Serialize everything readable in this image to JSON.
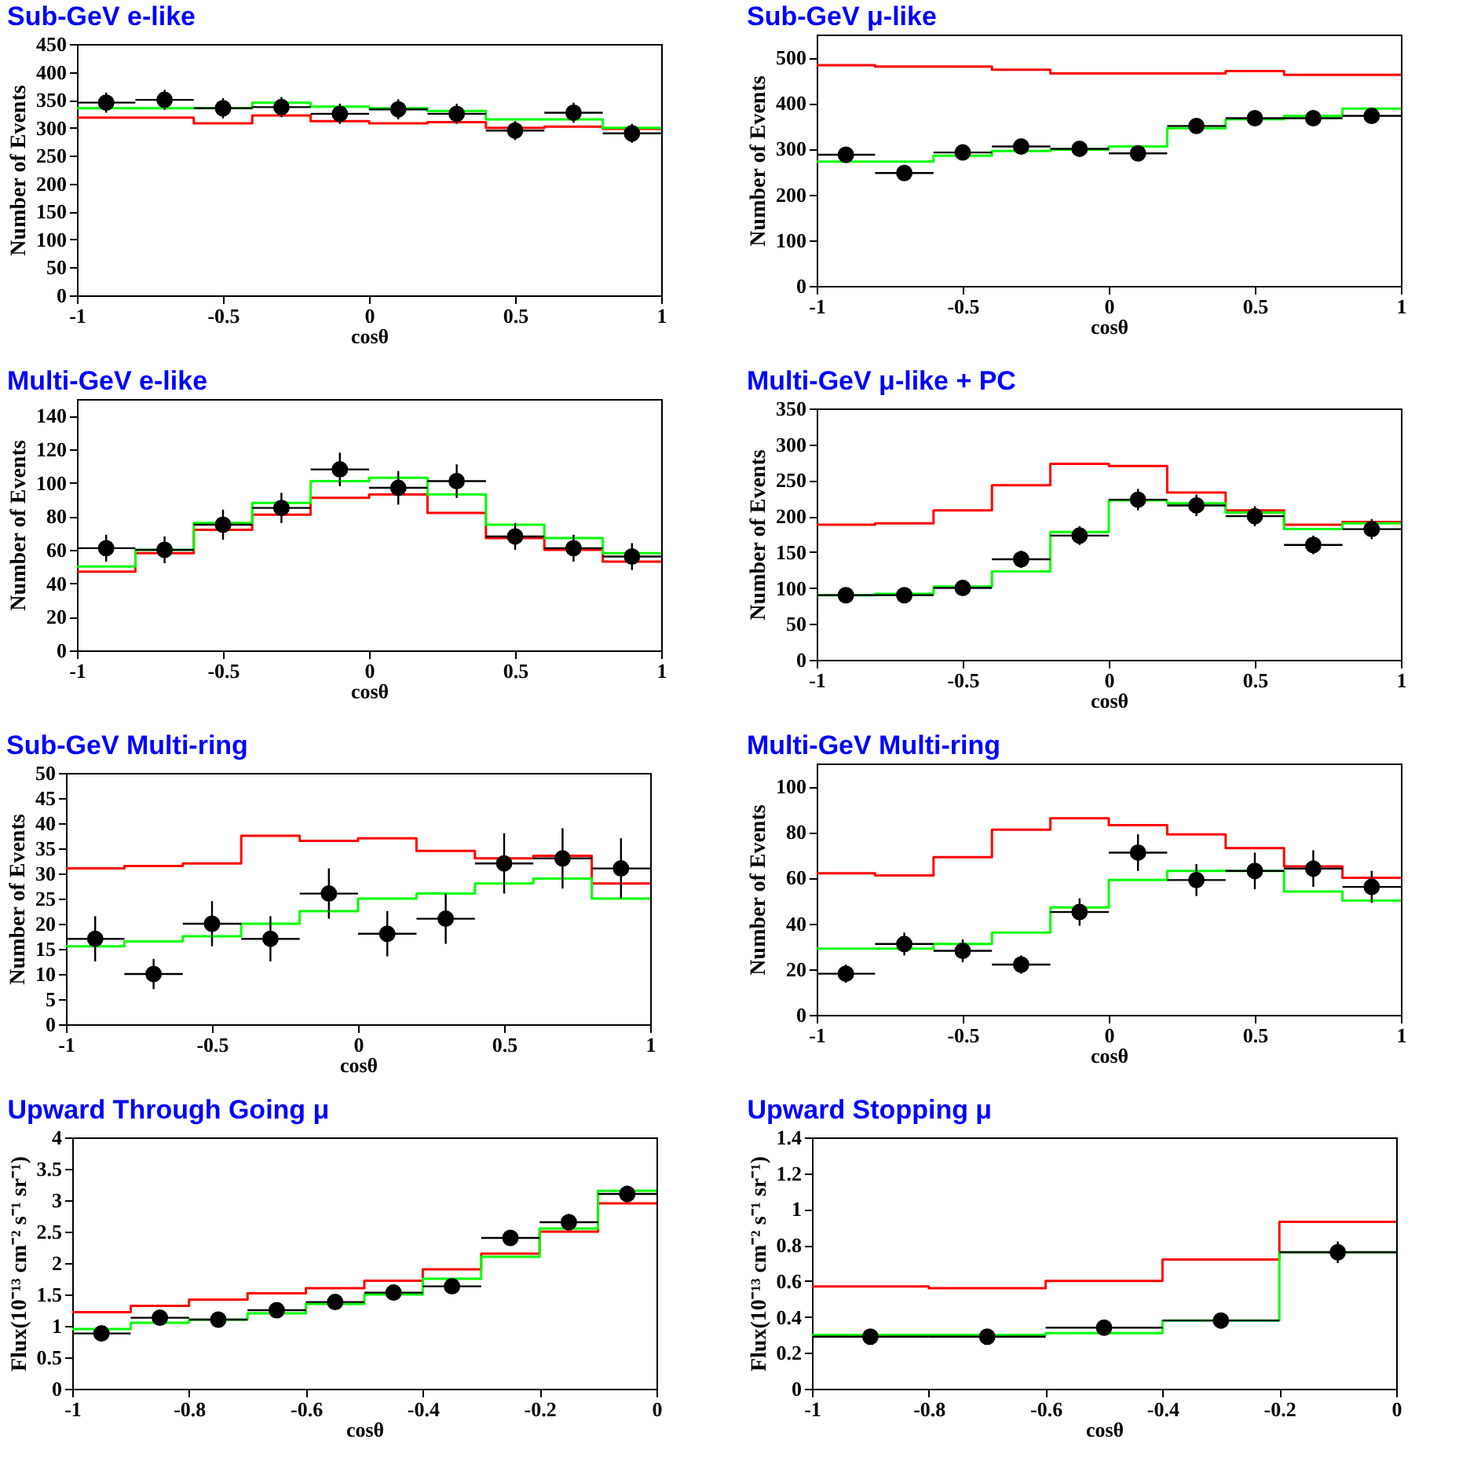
{
  "chart_data": [
    {
      "type": "scatter",
      "title": "Sub-GeV e-like",
      "xlabel": "cosθ",
      "ylabel": "Number of Events",
      "xlim": [
        -1,
        1
      ],
      "xticks": [
        -1,
        -0.5,
        0,
        0.5,
        1
      ],
      "ylim": [
        0,
        450
      ],
      "yticks": [
        0,
        50,
        100,
        150,
        200,
        250,
        300,
        350,
        400,
        450
      ],
      "series": [
        {
          "type": "step",
          "color": "#ff0000",
          "x": [
            -1,
            -0.8,
            -0.6,
            -0.4,
            -0.2,
            0,
            0.2,
            0.4,
            0.6,
            0.8,
            1
          ],
          "values": [
            318,
            318,
            308,
            322,
            312,
            308,
            310,
            300,
            302,
            298,
            298
          ]
        },
        {
          "type": "step",
          "color": "#00ff00",
          "x": [
            -1,
            -0.8,
            -0.6,
            -0.4,
            -0.2,
            0,
            0.2,
            0.4,
            0.6,
            0.8,
            1
          ],
          "values": [
            335,
            335,
            335,
            345,
            338,
            335,
            330,
            315,
            315,
            300,
            300
          ]
        },
        {
          "marker": "circle",
          "color": "#000000",
          "x": [
            -0.9,
            -0.7,
            -0.5,
            -0.3,
            -0.1,
            0.1,
            0.3,
            0.5,
            0.7,
            0.9
          ],
          "values": [
            345,
            350,
            335,
            337,
            325,
            333,
            325,
            295,
            327,
            290
          ],
          "errors": [
            18,
            18,
            18,
            18,
            18,
            18,
            18,
            17,
            18,
            17
          ],
          "xerrors": [
            0.1,
            0.1,
            0.1,
            0.1,
            0.1,
            0.1,
            0.1,
            0.1,
            0.1,
            0.1
          ]
        }
      ]
    },
    {
      "type": "scatter",
      "title": "Sub-GeV μ-like",
      "xlabel": "cosθ",
      "ylabel": "Number of Events",
      "xlim": [
        -1,
        1
      ],
      "xticks": [
        -1,
        -0.5,
        0,
        0.5,
        1
      ],
      "ylim": [
        0,
        550
      ],
      "yticks": [
        0,
        100,
        200,
        300,
        400,
        500
      ],
      "series": [
        {
          "type": "step",
          "color": "#ff0000",
          "x": [
            -1,
            -0.8,
            -0.6,
            -0.4,
            -0.2,
            0,
            0.2,
            0.4,
            0.6,
            0.8,
            1
          ],
          "values": [
            483,
            480,
            480,
            473,
            465,
            465,
            465,
            470,
            462,
            462,
            462
          ]
        },
        {
          "type": "step",
          "color": "#00ff00",
          "x": [
            -1,
            -0.8,
            -0.6,
            -0.4,
            -0.2,
            0,
            0.2,
            0.4,
            0.6,
            0.8,
            1
          ],
          "values": [
            272,
            272,
            285,
            295,
            298,
            305,
            345,
            365,
            372,
            388,
            388
          ]
        },
        {
          "marker": "circle",
          "color": "#000000",
          "x": [
            -0.9,
            -0.7,
            -0.5,
            -0.3,
            -0.1,
            0.1,
            0.3,
            0.5,
            0.7,
            0.9
          ],
          "values": [
            287,
            247,
            292,
            305,
            300,
            290,
            350,
            367,
            367,
            372
          ],
          "errors": [
            15,
            15,
            15,
            15,
            15,
            15,
            17,
            17,
            17,
            17
          ],
          "xerrors": [
            0.1,
            0.1,
            0.1,
            0.1,
            0.1,
            0.1,
            0.1,
            0.1,
            0.1,
            0.1
          ]
        }
      ]
    },
    {
      "type": "scatter",
      "title": "Multi-GeV e-like",
      "xlabel": "cosθ",
      "ylabel": "Number of Events",
      "xlim": [
        -1,
        1
      ],
      "xticks": [
        -1,
        -0.5,
        0,
        0.5,
        1
      ],
      "ylim": [
        0,
        150
      ],
      "yticks": [
        0,
        20,
        40,
        60,
        80,
        100,
        120,
        140
      ],
      "series": [
        {
          "type": "step",
          "color": "#ff0000",
          "x": [
            -1,
            -0.8,
            -0.6,
            -0.4,
            -0.2,
            0,
            0.2,
            0.4,
            0.6,
            0.8,
            1
          ],
          "values": [
            47,
            58,
            72,
            81,
            91,
            93,
            82,
            67,
            60,
            53,
            53
          ]
        },
        {
          "type": "step",
          "color": "#00ff00",
          "x": [
            -1,
            -0.8,
            -0.6,
            -0.4,
            -0.2,
            0,
            0.2,
            0.4,
            0.6,
            0.8,
            1
          ],
          "values": [
            50,
            60,
            76,
            88,
            101,
            103,
            93,
            75,
            67,
            58,
            58
          ]
        },
        {
          "marker": "circle",
          "color": "#000000",
          "x": [
            -0.9,
            -0.7,
            -0.5,
            -0.3,
            -0.1,
            0.1,
            0.3,
            0.5,
            0.7,
            0.9
          ],
          "values": [
            61,
            60,
            75,
            85,
            108,
            97,
            101,
            68,
            61,
            56
          ],
          "errors": [
            8,
            8,
            9,
            9,
            10,
            10,
            10,
            8,
            8,
            8
          ],
          "xerrors": [
            0.1,
            0.1,
            0.1,
            0.1,
            0.1,
            0.1,
            0.1,
            0.1,
            0.1,
            0.1
          ]
        }
      ]
    },
    {
      "type": "scatter",
      "title": "Multi-GeV μ-like + PC",
      "xlabel": "cosθ",
      "ylabel": "Number of Events",
      "xlim": [
        -1,
        1
      ],
      "xticks": [
        -1,
        -0.5,
        0,
        0.5,
        1
      ],
      "ylim": [
        0,
        350
      ],
      "yticks": [
        0,
        50,
        100,
        150,
        200,
        250,
        300,
        350
      ],
      "series": [
        {
          "type": "step",
          "color": "#ff0000",
          "x": [
            -1,
            -0.8,
            -0.6,
            -0.4,
            -0.2,
            0,
            0.2,
            0.4,
            0.6,
            0.8,
            1
          ],
          "values": [
            188,
            190,
            208,
            243,
            273,
            270,
            233,
            208,
            188,
            192,
            192
          ]
        },
        {
          "type": "step",
          "color": "#00ff00",
          "x": [
            -1,
            -0.8,
            -0.6,
            -0.4,
            -0.2,
            0,
            0.2,
            0.4,
            0.6,
            0.8,
            1
          ],
          "values": [
            90,
            92,
            102,
            123,
            178,
            222,
            218,
            205,
            182,
            190,
            190
          ]
        },
        {
          "marker": "circle",
          "color": "#000000",
          "x": [
            -0.9,
            -0.7,
            -0.5,
            -0.3,
            -0.1,
            0.1,
            0.3,
            0.5,
            0.7,
            0.9
          ],
          "values": [
            90,
            90,
            100,
            140,
            173,
            223,
            215,
            200,
            160,
            182
          ],
          "errors": [
            9,
            9,
            10,
            12,
            13,
            15,
            15,
            14,
            13,
            14
          ],
          "xerrors": [
            0.1,
            0.1,
            0.1,
            0.1,
            0.1,
            0.1,
            0.1,
            0.1,
            0.1,
            0.1
          ]
        }
      ]
    },
    {
      "type": "scatter",
      "title": "Sub-GeV Multi-ring",
      "xlabel": "cosθ",
      "ylabel": "Number of Events",
      "xlim": [
        -1,
        1
      ],
      "xticks": [
        -1,
        -0.5,
        0,
        0.5,
        1
      ],
      "ylim": [
        0,
        50
      ],
      "yticks": [
        0,
        5,
        10,
        15,
        20,
        25,
        30,
        35,
        40,
        45,
        50
      ],
      "series": [
        {
          "type": "step",
          "color": "#ff0000",
          "x": [
            -1,
            -0.8,
            -0.6,
            -0.4,
            -0.2,
            0,
            0.2,
            0.4,
            0.6,
            0.8,
            1
          ],
          "values": [
            31,
            31.5,
            32,
            37.5,
            36.5,
            37,
            34.5,
            33,
            33.5,
            28,
            28
          ]
        },
        {
          "type": "step",
          "color": "#00ff00",
          "x": [
            -1,
            -0.8,
            -0.6,
            -0.4,
            -0.2,
            0,
            0.2,
            0.4,
            0.6,
            0.8,
            1
          ],
          "values": [
            15.5,
            16.5,
            17.5,
            20,
            22.5,
            25,
            26,
            28,
            29,
            25,
            25
          ]
        },
        {
          "marker": "circle",
          "color": "#000000",
          "x": [
            -0.9,
            -0.7,
            -0.5,
            -0.3,
            -0.1,
            0.1,
            0.3,
            0.5,
            0.7,
            0.9
          ],
          "values": [
            17,
            10,
            20,
            17,
            26,
            18,
            21,
            32,
            33,
            31
          ],
          "errors": [
            4.5,
            3,
            4.5,
            4.5,
            5,
            4.5,
            5,
            6,
            6,
            6
          ],
          "xerrors": [
            0.1,
            0.1,
            0.1,
            0.1,
            0.1,
            0.1,
            0.1,
            0.1,
            0.1,
            0.1
          ]
        }
      ]
    },
    {
      "type": "scatter",
      "title": "Multi-GeV Multi-ring",
      "xlabel": "cosθ",
      "ylabel": "Number of Events",
      "xlim": [
        -1,
        1
      ],
      "xticks": [
        -1,
        -0.5,
        0,
        0.5,
        1
      ],
      "ylim": [
        0,
        110
      ],
      "yticks": [
        0,
        20,
        40,
        60,
        80,
        100
      ],
      "series": [
        {
          "type": "step",
          "color": "#ff0000",
          "x": [
            -1,
            -0.8,
            -0.6,
            -0.4,
            -0.2,
            0,
            0.2,
            0.4,
            0.6,
            0.8,
            1
          ],
          "values": [
            62,
            61,
            69,
            81,
            86,
            83,
            79,
            73,
            65,
            60,
            60
          ]
        },
        {
          "type": "step",
          "color": "#00ff00",
          "x": [
            -1,
            -0.8,
            -0.6,
            -0.4,
            -0.2,
            0,
            0.2,
            0.4,
            0.6,
            0.8,
            1
          ],
          "values": [
            29,
            29,
            31,
            36,
            47,
            59,
            63,
            63,
            54,
            50,
            50
          ]
        },
        {
          "marker": "circle",
          "color": "#000000",
          "x": [
            -0.9,
            -0.7,
            -0.5,
            -0.3,
            -0.1,
            0.1,
            0.3,
            0.5,
            0.7,
            0.9
          ],
          "values": [
            18,
            31,
            28,
            22,
            45,
            71,
            59,
            63,
            64,
            56
          ],
          "errors": [
            4,
            5,
            5,
            4,
            6,
            8,
            7,
            8,
            8,
            7
          ],
          "xerrors": [
            0.1,
            0.1,
            0.1,
            0.1,
            0.1,
            0.1,
            0.1,
            0.1,
            0.1,
            0.1
          ]
        }
      ]
    },
    {
      "type": "scatter",
      "title": "Upward Through Going μ",
      "xlabel": "cosθ",
      "ylabel": "Flux(10⁻¹³ cm⁻² s⁻¹ sr⁻¹)",
      "xlim": [
        -1,
        0
      ],
      "xticks": [
        -1,
        -0.8,
        -0.6,
        -0.4,
        -0.2,
        0
      ],
      "ylim": [
        0,
        4
      ],
      "yticks": [
        0,
        0.5,
        1,
        1.5,
        2,
        2.5,
        3,
        3.5,
        4
      ],
      "series": [
        {
          "type": "step",
          "color": "#ff0000",
          "x": [
            -1,
            -0.9,
            -0.8,
            -0.7,
            -0.6,
            -0.5,
            -0.4,
            -0.3,
            -0.2,
            -0.1,
            0
          ],
          "values": [
            1.22,
            1.32,
            1.42,
            1.52,
            1.6,
            1.72,
            1.9,
            2.15,
            2.5,
            2.95,
            2.95
          ]
        },
        {
          "type": "step",
          "color": "#00ff00",
          "x": [
            -1,
            -0.9,
            -0.8,
            -0.7,
            -0.6,
            -0.5,
            -0.4,
            -0.3,
            -0.2,
            -0.1,
            0
          ],
          "values": [
            0.95,
            1.05,
            1.1,
            1.2,
            1.35,
            1.5,
            1.75,
            2.1,
            2.55,
            3.15,
            3.15
          ]
        },
        {
          "marker": "circle",
          "color": "#000000",
          "x": [
            -0.95,
            -0.85,
            -0.75,
            -0.65,
            -0.55,
            -0.45,
            -0.35,
            -0.25,
            -0.15,
            -0.05
          ],
          "values": [
            0.88,
            1.13,
            1.1,
            1.25,
            1.38,
            1.53,
            1.63,
            2.4,
            2.65,
            3.1
          ],
          "errors": [
            0.08,
            0.08,
            0.08,
            0.08,
            0.09,
            0.09,
            0.09,
            0.12,
            0.13,
            0.13
          ],
          "xerrors": [
            0.05,
            0.05,
            0.05,
            0.05,
            0.05,
            0.05,
            0.05,
            0.05,
            0.05,
            0.05
          ]
        }
      ]
    },
    {
      "type": "scatter",
      "title": "Upward Stopping μ",
      "xlabel": "cosθ",
      "ylabel": "Flux(10⁻¹³ cm⁻² s⁻¹ sr⁻¹)",
      "xlim": [
        -1,
        0
      ],
      "xticks": [
        -1,
        -0.8,
        -0.6,
        -0.4,
        -0.2,
        0
      ],
      "ylim": [
        0,
        1.4
      ],
      "yticks": [
        0,
        0.2,
        0.4,
        0.6,
        0.8,
        1,
        1.2,
        1.4
      ],
      "series": [
        {
          "type": "step",
          "color": "#ff0000",
          "x": [
            -1,
            -0.8,
            -0.6,
            -0.4,
            -0.2,
            0
          ],
          "values": [
            0.57,
            0.56,
            0.6,
            0.72,
            0.93,
            0.93
          ]
        },
        {
          "type": "step",
          "color": "#00ff00",
          "x": [
            -1,
            -0.8,
            -0.6,
            -0.4,
            -0.2,
            0
          ],
          "values": [
            0.3,
            0.3,
            0.31,
            0.38,
            0.76,
            0.76
          ]
        },
        {
          "marker": "circle",
          "color": "#000000",
          "x": [
            -0.9,
            -0.7,
            -0.5,
            -0.3,
            -0.1
          ],
          "values": [
            0.29,
            0.29,
            0.34,
            0.38,
            0.76
          ],
          "errors": [
            0.02,
            0.02,
            0.03,
            0.03,
            0.06
          ],
          "xerrors": [
            0.1,
            0.1,
            0.1,
            0.1,
            0.1
          ]
        }
      ]
    }
  ]
}
